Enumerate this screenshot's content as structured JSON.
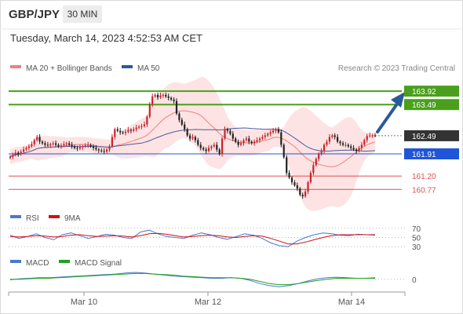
{
  "header": {
    "symbol": "GBP/JPY",
    "timeframe": "30 MIN",
    "datetime": "Tuesday, March 14, 2023 4:52:53 AM CET"
  },
  "legend": {
    "ma20_label": "MA 20 + Bollinger Bands",
    "ma50_label": "MA 50",
    "ma20_color": "#f08080",
    "ma50_color": "#2a5a9a",
    "copyright": "Research © 2023 Trading Central"
  },
  "rsi_legend": {
    "rsi_label": "RSI",
    "ma9_label": "9MA",
    "rsi_color": "#4a78d0",
    "ma9_color": "#d01010"
  },
  "macd_legend": {
    "macd_label": "MACD",
    "signal_label": "MACD Signal",
    "macd_color": "#4a78d0",
    "signal_color": "#20a020"
  },
  "colors": {
    "up_candle": "#c8232c",
    "resistance": "#4aa01c",
    "pivot": "#1f55d8",
    "support": "#e05050",
    "current": "#333333",
    "arrow": "#2a5a9a",
    "band_fill": "#fde3e3"
  },
  "chart_data": [
    {
      "type": "candlestick",
      "title": "GBP/JPY",
      "x_ticks": [
        "Mar 10",
        "Mar 12",
        "Mar 14"
      ],
      "ylim": [
        160.3,
        164.4
      ],
      "series": [
        {
          "name": "GBP/JPY",
          "close": [
            161.82,
            161.88,
            161.95,
            161.9,
            161.98,
            162.05,
            162.1,
            162.15,
            162.22,
            162.35,
            162.45,
            162.3,
            162.25,
            162.2,
            162.18,
            162.22,
            162.25,
            162.2,
            162.15,
            162.18,
            162.22,
            162.25,
            162.2,
            162.15,
            162.1,
            162.08,
            162.12,
            162.15,
            162.18,
            162.2,
            162.15,
            162.1,
            162.05,
            162.02,
            162.0,
            161.98,
            162.05,
            162.15,
            162.45,
            162.7,
            162.65,
            162.6,
            162.58,
            162.62,
            162.68,
            162.65,
            162.7,
            162.75,
            162.78,
            162.8,
            162.85,
            163.1,
            163.5,
            163.75,
            163.8,
            163.72,
            163.78,
            163.8,
            163.75,
            163.7,
            163.65,
            163.6,
            163.2,
            163.0,
            162.85,
            162.7,
            162.5,
            162.4,
            162.45,
            162.35,
            162.2,
            162.1,
            162.05,
            162.0,
            162.1,
            162.15,
            162.2,
            162.05,
            161.9,
            162.4,
            162.7,
            162.65,
            162.55,
            162.4,
            162.3,
            162.2,
            162.25,
            162.35,
            162.4,
            162.3,
            162.25,
            162.3,
            162.35,
            162.4,
            162.45,
            162.5,
            162.55,
            162.6,
            162.65,
            162.7,
            162.6,
            162.2,
            161.8,
            161.3,
            161.15,
            161.0,
            160.9,
            160.8,
            160.6,
            160.55,
            160.7,
            161.0,
            161.3,
            161.55,
            161.75,
            161.9,
            162.0,
            162.2,
            162.3,
            162.45,
            162.5,
            162.45,
            162.3,
            162.25,
            162.2,
            162.2,
            162.15,
            162.1,
            162.05,
            162.0,
            162.1,
            162.2,
            162.35,
            162.48,
            162.5,
            162.5,
            162.49
          ]
        }
      ],
      "indicators": [
        {
          "name": "MA 20 + Bollinger Bands"
        },
        {
          "name": "MA 50"
        }
      ],
      "levels": [
        {
          "value": 163.92,
          "label": "163.92",
          "kind": "resistance"
        },
        {
          "value": 163.49,
          "label": "163.49",
          "kind": "resistance"
        },
        {
          "value": 162.49,
          "label": "162.49",
          "kind": "current"
        },
        {
          "value": 161.91,
          "label": "161.91",
          "kind": "pivot"
        },
        {
          "value": 161.2,
          "label": "161.20",
          "kind": "support"
        },
        {
          "value": 160.77,
          "label": "160.77",
          "kind": "support"
        }
      ]
    },
    {
      "type": "line",
      "title": "RSI",
      "y_ticks": [
        70,
        50,
        30
      ],
      "series": [
        {
          "name": "RSI",
          "values": [
            55,
            48,
            52,
            58,
            50,
            45,
            56,
            60,
            54,
            48,
            52,
            57,
            55,
            50,
            48,
            62,
            66,
            58,
            52,
            50,
            48,
            55,
            60,
            56,
            50,
            46,
            52,
            58,
            55,
            48,
            38,
            32,
            30,
            42,
            50,
            56,
            60,
            58,
            55,
            54,
            57,
            56,
            55
          ]
        },
        {
          "name": "9MA",
          "values": [
            52,
            51,
            52,
            54,
            53,
            51,
            52,
            55,
            56,
            54,
            52,
            53,
            54,
            53,
            51,
            54,
            58,
            59,
            57,
            54,
            51,
            52,
            54,
            55,
            54,
            51,
            50,
            52,
            54,
            53,
            48,
            42,
            36,
            36,
            40,
            45,
            50,
            54,
            56,
            56,
            56,
            56,
            56
          ]
        }
      ]
    },
    {
      "type": "line",
      "title": "MACD",
      "y_ticks": [
        0
      ],
      "series": [
        {
          "name": "MACD",
          "values": [
            -0.01,
            0.01,
            0.02,
            0.03,
            0.03,
            0.04,
            0.05,
            0.06,
            0.07,
            0.08,
            0.09,
            0.1,
            0.12,
            0.13,
            0.12,
            0.1,
            0.08,
            0.06,
            0.05,
            0.04,
            0.03,
            0.02,
            0.02,
            0.03,
            0.02,
            -0.02,
            -0.08,
            -0.12,
            -0.14,
            -0.12,
            -0.08,
            -0.03,
            0.01,
            0.03,
            0.04,
            0.03,
            0.02,
            0.02,
            0.03
          ]
        },
        {
          "name": "MACD Signal",
          "values": [
            0.0,
            0.0,
            0.01,
            0.02,
            0.02,
            0.03,
            0.04,
            0.05,
            0.06,
            0.07,
            0.08,
            0.09,
            0.1,
            0.11,
            0.11,
            0.1,
            0.09,
            0.08,
            0.06,
            0.05,
            0.04,
            0.03,
            0.03,
            0.03,
            0.02,
            0.0,
            -0.04,
            -0.08,
            -0.1,
            -0.1,
            -0.08,
            -0.05,
            -0.02,
            0.0,
            0.02,
            0.02,
            0.02,
            0.02,
            0.02
          ]
        }
      ]
    }
  ]
}
